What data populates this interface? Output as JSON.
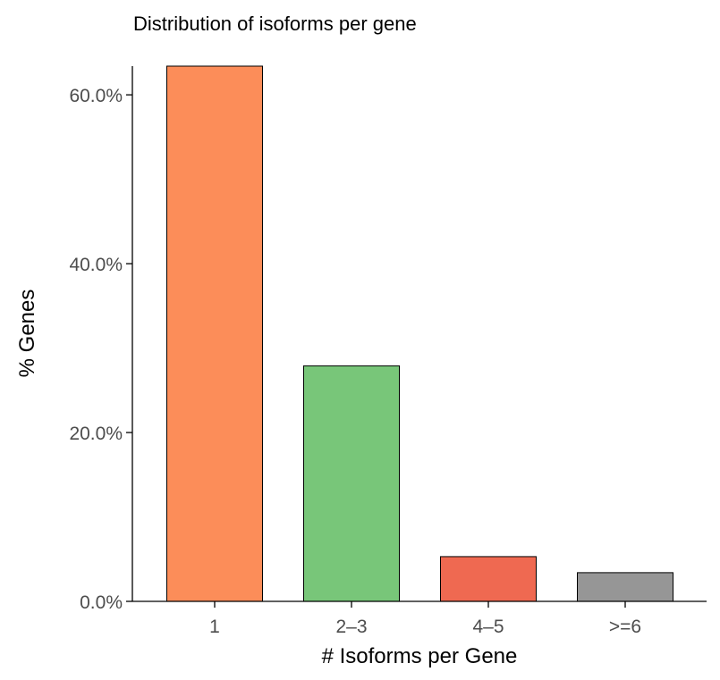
{
  "chart_data": {
    "type": "bar",
    "title": "Distribution of isoforms per gene",
    "xlabel": "# Isoforms per Gene",
    "ylabel": "% Genes",
    "categories": [
      "1",
      "2–3",
      "4–5",
      ">=6"
    ],
    "values": [
      63.4,
      27.9,
      5.3,
      3.4
    ],
    "colors": [
      "#fc8d59",
      "#78c679",
      "#ef6951",
      "#969696"
    ],
    "ylim": [
      0,
      63.4
    ],
    "yticks": [
      0,
      20,
      40,
      60
    ],
    "ytick_labels": [
      "0.0%",
      "20.0%",
      "40.0%",
      "60.0%"
    ],
    "grid": false,
    "legend": "none"
  }
}
